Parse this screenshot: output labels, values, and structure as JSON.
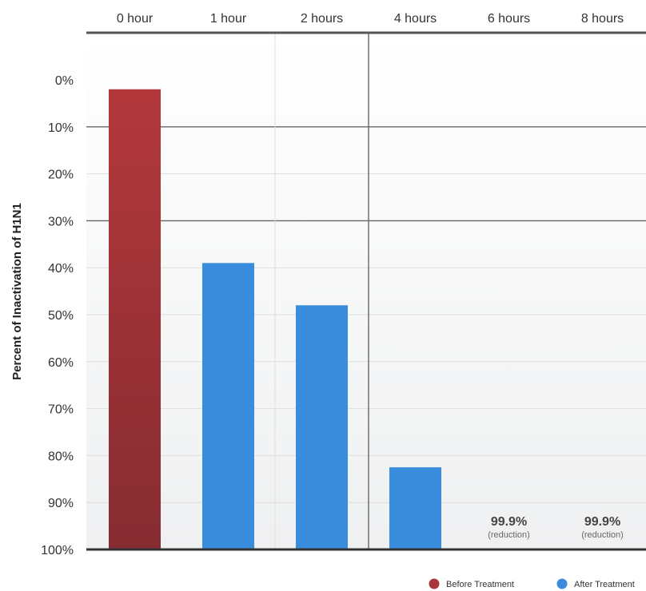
{
  "chart_data": {
    "type": "bar",
    "title": "",
    "xlabel": "",
    "ylabel": "Percent of Inactivation of H1N1",
    "categories": [
      "0 hour",
      "1 hour",
      "2 hours",
      "4 hours",
      "6 hours",
      "8 hours"
    ],
    "y_ticks": [
      "0%",
      "10%",
      "20%",
      "30%",
      "40%",
      "50%",
      "60%",
      "70%",
      "80%",
      "90%",
      "100%"
    ],
    "ylim": [
      0,
      100
    ],
    "y_inverted": true,
    "x_axis_position": "top",
    "series": [
      {
        "name": "Before Treatment",
        "color": "#a8353a",
        "values": [
          98,
          null,
          null,
          null,
          null,
          null
        ]
      },
      {
        "name": "After Treatment",
        "color": "#3a8ddd",
        "values": [
          null,
          61,
          52,
          17.5,
          0,
          0
        ]
      }
    ],
    "data_labels": [
      {
        "category": "6 hours",
        "value": "99.9%",
        "note": "(reduction)"
      },
      {
        "category": "8 hours",
        "value": "99.9%",
        "note": "(reduction)"
      }
    ],
    "legend": {
      "position": "bottom-right",
      "items": [
        {
          "label": "Before Treatment",
          "color": "#a8353a"
        },
        {
          "label": "After Treatment",
          "color": "#3a8ddd"
        }
      ]
    },
    "grid": true
  }
}
